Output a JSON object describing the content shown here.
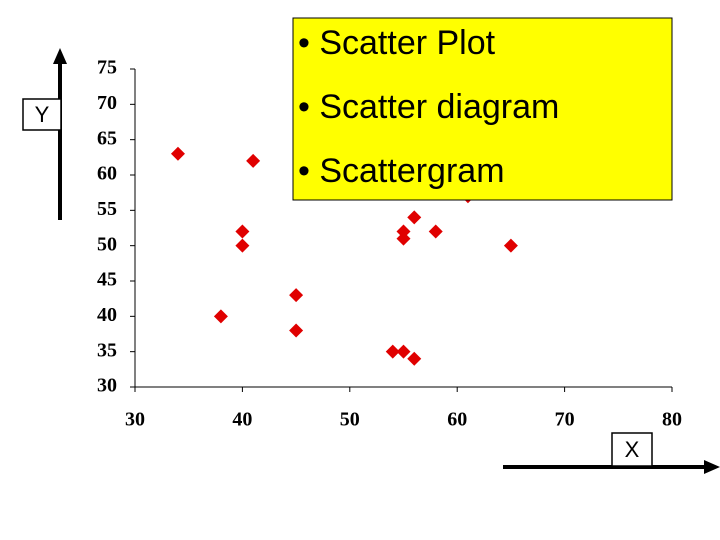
{
  "chart_data": {
    "type": "scatter",
    "x": [
      34,
      41,
      40,
      40,
      38,
      45,
      45,
      54,
      55,
      56,
      55,
      55,
      56,
      58,
      65,
      61
    ],
    "values": [
      63,
      62,
      52,
      50,
      40,
      43,
      38,
      35,
      35,
      34,
      52,
      51,
      54,
      52,
      50,
      57
    ],
    "color": "#e00000",
    "xlim": [
      30,
      80
    ],
    "xticks": [
      30,
      40,
      50,
      60,
      70,
      80
    ],
    "ylim": [
      30,
      75
    ],
    "yticks": [
      30,
      35,
      40,
      45,
      50,
      55,
      60,
      65,
      70,
      75
    ],
    "x_label": "X",
    "y_label": "Y",
    "annotations": [
      "• Scatter Plot",
      "• Scatter diagram",
      "• Scattergram"
    ]
  }
}
